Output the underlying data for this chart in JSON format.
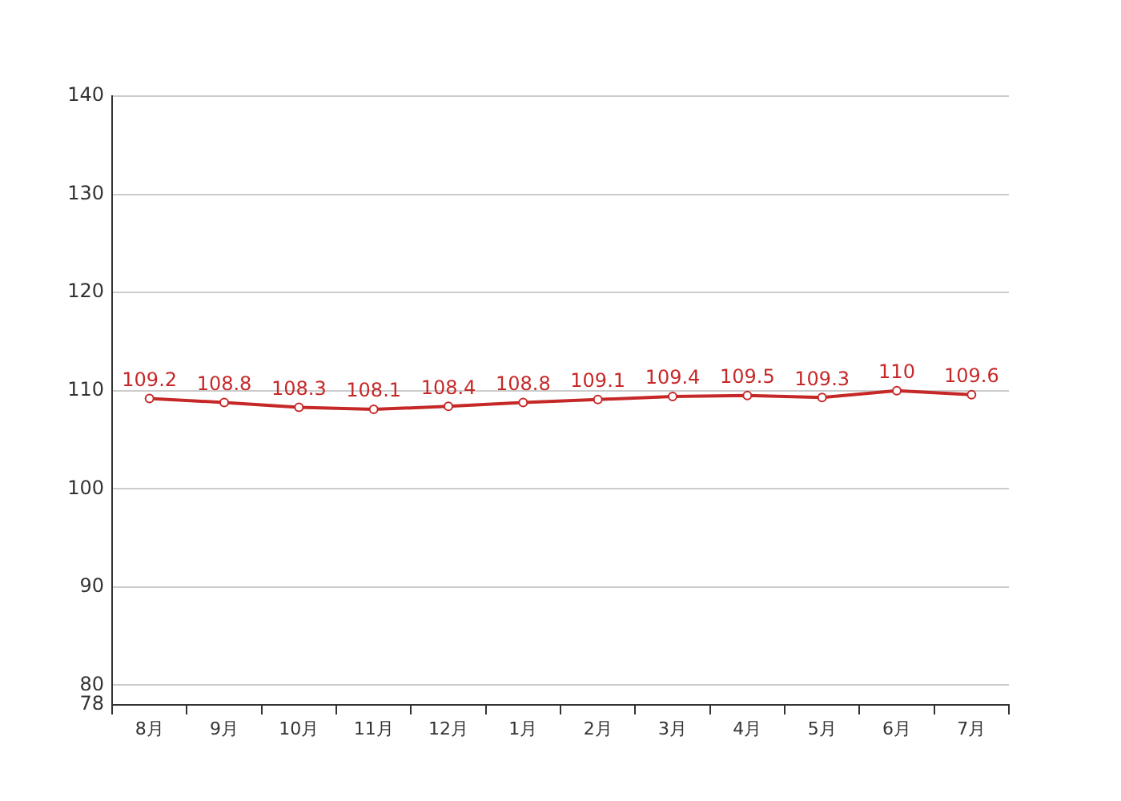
{
  "chart_data": {
    "type": "line",
    "categories": [
      "8月",
      "9月",
      "10月",
      "11月",
      "12月",
      "1月",
      "2月",
      "3月",
      "4月",
      "5月",
      "6月",
      "7月"
    ],
    "series": [
      {
        "color": "#c62828",
        "values": [
          109.2,
          108.8,
          108.3,
          108.1,
          108.4,
          108.8,
          109.1,
          109.4,
          109.5,
          109.3,
          110,
          109.6
        ]
      }
    ],
    "ylim": [
      78,
      140
    ],
    "yticks": [
      78,
      80,
      90,
      100,
      110,
      120,
      130,
      140
    ],
    "grid": "y",
    "legend": false,
    "marker": "circle",
    "line_style": "solid",
    "data_labels": true
  }
}
